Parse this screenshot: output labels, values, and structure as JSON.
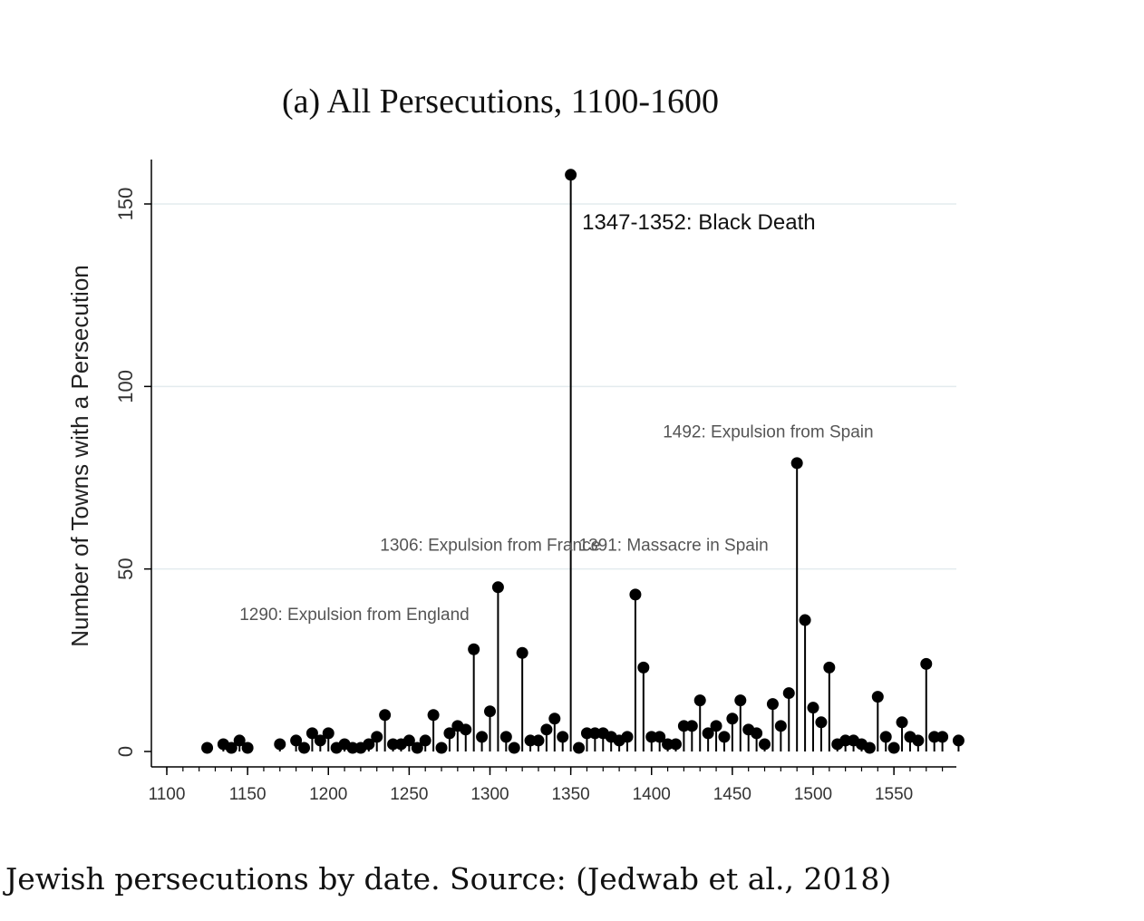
{
  "caption": "Jewish persecutions by date. Source: (Jedwab et al., 2018)",
  "chart_data": {
    "type": "scatter",
    "subtype": "stem",
    "title": "(a)  All Persecutions, 1100-1600",
    "xlabel": "",
    "ylabel": "Number of Towns with a Persecution",
    "xlim": [
      1095,
      1600
    ],
    "ylim": [
      -4,
      162
    ],
    "x_ticks": [
      1100,
      1150,
      1200,
      1250,
      1300,
      1350,
      1400,
      1450,
      1500,
      1550
    ],
    "y_ticks": [
      0,
      50,
      100,
      150
    ],
    "grid": true,
    "marker_color": "#000000",
    "series": [
      {
        "x": [
          1125,
          1135,
          1140,
          1145,
          1150,
          1170,
          1180,
          1185,
          1190,
          1195,
          1200,
          1205,
          1210,
          1215,
          1220,
          1225,
          1230,
          1235,
          1240,
          1245,
          1250,
          1255,
          1260,
          1265,
          1270,
          1275,
          1280,
          1285,
          1290,
          1295,
          1300,
          1305,
          1310,
          1315,
          1320,
          1325,
          1330,
          1335,
          1340,
          1345,
          1350,
          1355,
          1360,
          1365,
          1370,
          1375,
          1380,
          1385,
          1390,
          1395,
          1400,
          1405,
          1410,
          1415,
          1420,
          1425,
          1430,
          1435,
          1440,
          1445,
          1450,
          1455,
          1460,
          1465,
          1470,
          1475,
          1480,
          1485,
          1490,
          1495,
          1500,
          1505,
          1510,
          1515,
          1520,
          1525,
          1530,
          1535,
          1540,
          1545,
          1550,
          1555,
          1560,
          1565,
          1570,
          1575,
          1580,
          1590
        ],
        "y": [
          1,
          2,
          1,
          3,
          1,
          2,
          3,
          1,
          5,
          3,
          5,
          1,
          2,
          1,
          1,
          2,
          4,
          10,
          2,
          2,
          3,
          1,
          3,
          10,
          1,
          5,
          7,
          6,
          28,
          4,
          11,
          45,
          4,
          1,
          27,
          3,
          3,
          6,
          9,
          4,
          158,
          1,
          5,
          5,
          5,
          4,
          3,
          4,
          43,
          23,
          4,
          4,
          2,
          2,
          7,
          7,
          14,
          5,
          7,
          4,
          9,
          14,
          6,
          5,
          2,
          13,
          7,
          16,
          79,
          36,
          12,
          8,
          23,
          2,
          3,
          3,
          2,
          1,
          15,
          4,
          1,
          8,
          4,
          3,
          24,
          4,
          4,
          3
        ]
      }
    ],
    "annotations": [
      {
        "text": "1347-1352: Black Death",
        "x": 1357,
        "y": 143,
        "style": "big"
      },
      {
        "text": "1492: Expulsion from Spain",
        "x": 1407,
        "y": 86,
        "style": "small"
      },
      {
        "text": "1306: Expulsion from France",
        "x": 1232,
        "y": 55,
        "style": "small"
      },
      {
        "text": "1391: Massacre in Spain",
        "x": 1355,
        "y": 55,
        "style": "small"
      },
      {
        "text": "1290: Expulsion from England",
        "x": 1145,
        "y": 36,
        "style": "small"
      }
    ]
  }
}
